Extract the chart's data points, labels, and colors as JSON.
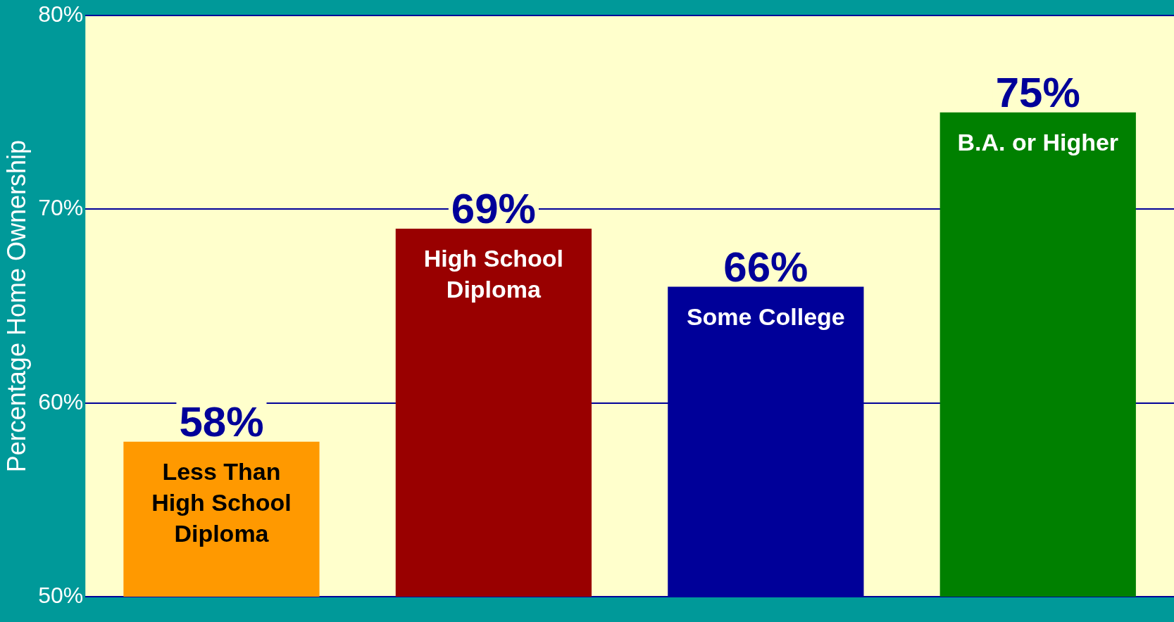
{
  "chart_data": {
    "type": "bar",
    "ylabel": "Percentage Home Ownership",
    "categories": [
      "Less Than High School Diploma",
      "High School Diploma",
      "Some College",
      "B.A. or Higher"
    ],
    "values": [
      58,
      69,
      66,
      75
    ],
    "colors": [
      "#ff9900",
      "#990000",
      "#000099",
      "#008000"
    ],
    "ylim": [
      50,
      80
    ],
    "yticks": [
      {
        "value": 50,
        "label": "50%"
      },
      {
        "value": 60,
        "label": "60%"
      },
      {
        "value": 70,
        "label": "70%"
      },
      {
        "value": 80,
        "label": "80%"
      }
    ],
    "grid": "y",
    "tick_labels": "y",
    "data_labels": true,
    "value_labels": [
      "58%",
      "69%",
      "66%",
      "75%"
    ]
  }
}
